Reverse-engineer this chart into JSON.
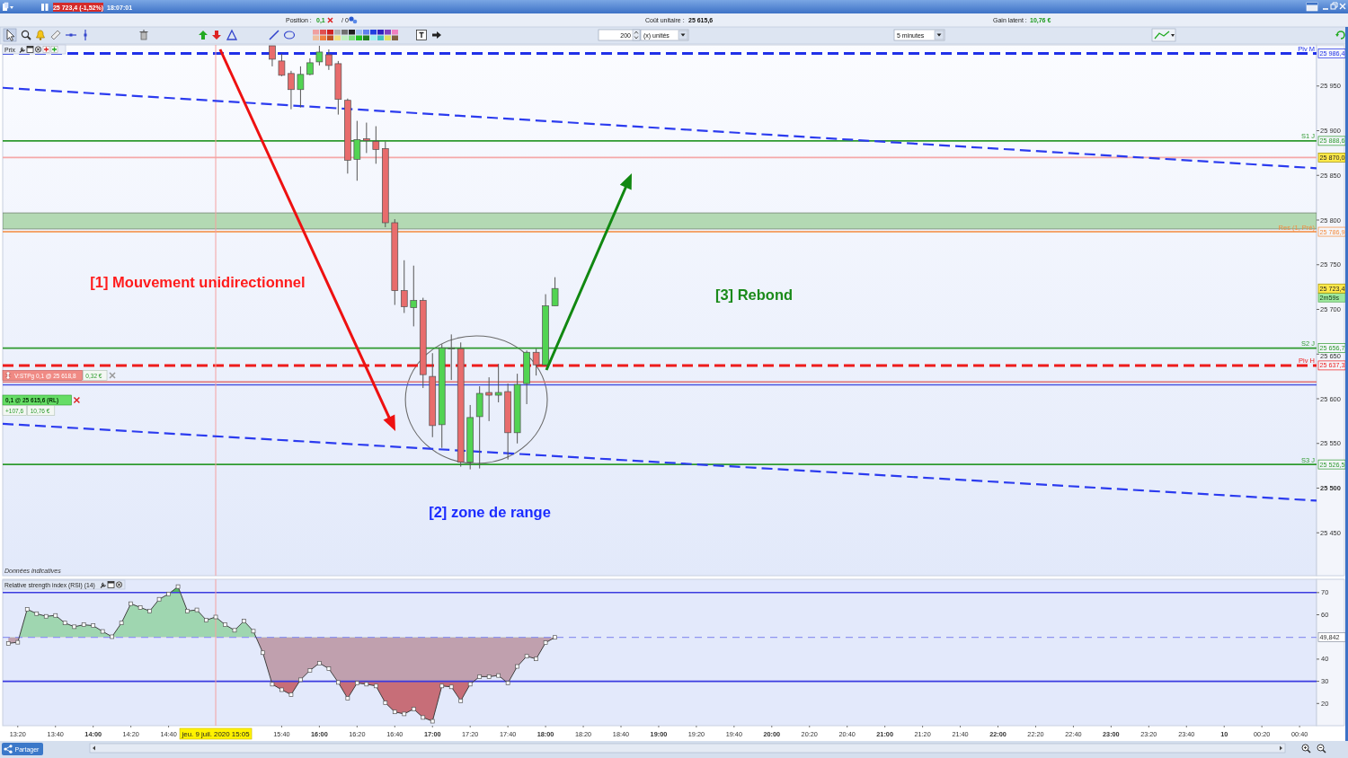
{
  "chart_data": [
    {
      "type": "candlestick",
      "ylabel": "Prix",
      "tick_labels": "y",
      "x": [
        "2020-07-09T15:35",
        "2020-07-09T15:40",
        "2020-07-09T15:45",
        "2020-07-09T15:50",
        "2020-07-09T15:55",
        "2020-07-09T16:00",
        "2020-07-09T16:05",
        "2020-07-09T16:10",
        "2020-07-09T16:15",
        "2020-07-09T16:20",
        "2020-07-09T16:25",
        "2020-07-09T16:30",
        "2020-07-09T16:35",
        "2020-07-09T16:40",
        "2020-07-09T16:45",
        "2020-07-09T16:50",
        "2020-07-09T16:55",
        "2020-07-09T17:00",
        "2020-07-09T17:05",
        "2020-07-09T17:10",
        "2020-07-09T17:15",
        "2020-07-09T17:20",
        "2020-07-09T17:25",
        "2020-07-09T17:30",
        "2020-07-09T17:35",
        "2020-07-09T17:40",
        "2020-07-09T17:45",
        "2020-07-09T17:50",
        "2020-07-09T17:55",
        "2020-07-09T18:00",
        "2020-07-09T18:05"
      ],
      "ohlc": [
        [
          25995,
          25995,
          25972,
          25980
        ],
        [
          25978,
          25986,
          25961,
          25962
        ],
        [
          25964,
          25967,
          25924,
          25946
        ],
        [
          25946,
          25972,
          25926,
          25963
        ],
        [
          25963,
          25981,
          25962,
          25976
        ],
        [
          25977,
          25995,
          25973,
          25988
        ],
        [
          25985,
          25991,
          25968,
          25973
        ],
        [
          25975,
          25978,
          25918,
          25935
        ],
        [
          25934,
          25936,
          25852,
          25867
        ],
        [
          25868,
          25911,
          25844,
          25890
        ],
        [
          25891,
          25909,
          25875,
          25889
        ],
        [
          25888,
          25905,
          25863,
          25879
        ],
        [
          25880,
          25888,
          25792,
          25797
        ],
        [
          25797,
          25801,
          25705,
          25721
        ],
        [
          25721,
          25755,
          25696,
          25703
        ],
        [
          25702,
          25749,
          25681,
          25710
        ],
        [
          25710,
          25713,
          25612,
          25627
        ],
        [
          25625,
          25651,
          25557,
          25570
        ],
        [
          25571,
          25661,
          25545,
          25657
        ],
        [
          25656,
          25672,
          25621,
          25657
        ],
        [
          25656,
          25663,
          25524,
          25529
        ],
        [
          25529,
          25593,
          25521,
          25579
        ],
        [
          25580,
          25614,
          25522,
          25606
        ],
        [
          25607,
          25624,
          25575,
          25604
        ],
        [
          25604,
          25639,
          25596,
          25607
        ],
        [
          25608,
          25617,
          25532,
          25562
        ],
        [
          25562,
          25628,
          25550,
          25616
        ],
        [
          25617,
          25654,
          25594,
          25652
        ],
        [
          25652,
          25656,
          25626,
          25638
        ],
        [
          25638,
          25717,
          25637,
          25704
        ],
        [
          25704,
          25736,
          25704,
          25723.4
        ]
      ],
      "series": [
        {
          "type": "line",
          "color": "#2b3bef",
          "line_style": "dashed",
          "x": [
            "2020-07-09T13:12",
            "2020-07-10T00:49"
          ],
          "values": [
            25948,
            25858
          ]
        },
        {
          "type": "line",
          "color": "#2b3bef",
          "line_style": "dashed",
          "x": [
            "2020-07-09T13:12",
            "2020-07-10T00:49"
          ],
          "values": [
            25572,
            25486
          ]
        }
      ],
      "xlim": [
        "2020-07-09T13:12",
        "2020-07-10T00:49"
      ],
      "ylim": [
        25402,
        25996
      ],
      "yticks": [
        {
          "value": 25450,
          "label": "25 450"
        },
        {
          "value": 25500,
          "label": "25 500"
        },
        {
          "value": 25550,
          "label": "25 550"
        },
        {
          "value": 25600,
          "label": "25 600"
        },
        {
          "value": 25650,
          "label": "25 650"
        },
        {
          "value": 25700,
          "label": "25 700"
        },
        {
          "value": 25750,
          "label": "25 750"
        },
        {
          "value": 25800,
          "label": "25 800"
        },
        {
          "value": 25850,
          "label": "25 850"
        },
        {
          "value": 25900,
          "label": "25 900"
        },
        {
          "value": 25950,
          "label": "25 950"
        }
      ],
      "bands": [
        {
          "axis": "y",
          "from": 25790,
          "to": 25808,
          "color": "#b3d9b3"
        }
      ],
      "ref_lines": [
        {
          "axis": "y",
          "value": 25986.4,
          "label": "Piv M",
          "color": "#2030e8",
          "line_style": "dashed"
        },
        {
          "axis": "y",
          "value": 25888.6,
          "label": "S1 J",
          "color": "#2e9a2e"
        },
        {
          "axis": "y",
          "value": 25870.0,
          "color": "#f5a8a8"
        },
        {
          "axis": "y",
          "value": 25786.9,
          "label": "Res (1, Pré)",
          "color": "#f58a3c"
        },
        {
          "axis": "y",
          "value": 25656.7,
          "label": "S2 J",
          "color": "#2e9a2e"
        },
        {
          "axis": "y",
          "value": 25637.3,
          "label": "Piv H",
          "color": "#ee1c1c",
          "line_style": "dashed"
        },
        {
          "axis": "y",
          "value": 25618.8,
          "color": "#e07070"
        },
        {
          "axis": "y",
          "value": 25615.6,
          "color": "#4a55e0"
        },
        {
          "axis": "y",
          "value": 25526.5,
          "label": "S3 J",
          "color": "#2e9a2e"
        },
        {
          "axis": "x",
          "value": "2020-07-09T15:05",
          "color": "#f5a0a0"
        }
      ],
      "annotations": [
        "[1] Mouvement unidirectionnel",
        "[2] zone de range",
        "[3] Rebond",
        "V:STPg 0,1 @ 25 618,8",
        "0,32 €",
        "0,1 @ 25 615,6 (RL)",
        "+107,6",
        "10,76 €",
        "Données indicatives",
        "2m59s",
        {
          "text": "25 986,4",
          "y": 25986.4
        },
        {
          "text": "25 888,6",
          "y": 25888.6
        },
        {
          "text": "25 870,0",
          "y": 25870.0
        },
        {
          "text": "25 786,9",
          "y": 25786.9
        },
        {
          "text": "25 723,4",
          "y": 25723.4
        },
        {
          "text": "25 656,7",
          "y": 25656.7
        },
        {
          "text": "25 637,3",
          "y": 25637.3
        },
        {
          "text": "25 526,5",
          "y": 25526.5
        }
      ]
    },
    {
      "type": "area",
      "title": "Relative strength index (RSI) (14)",
      "marker": "square",
      "x": [
        "2020-07-09T13:15",
        "2020-07-09T13:20",
        "2020-07-09T13:25",
        "2020-07-09T13:30",
        "2020-07-09T13:35",
        "2020-07-09T13:40",
        "2020-07-09T13:45",
        "2020-07-09T13:50",
        "2020-07-09T13:55",
        "2020-07-09T14:00",
        "2020-07-09T14:05",
        "2020-07-09T14:10",
        "2020-07-09T14:15",
        "2020-07-09T14:20",
        "2020-07-09T14:25",
        "2020-07-09T14:30",
        "2020-07-09T14:35",
        "2020-07-09T14:40",
        "2020-07-09T14:45",
        "2020-07-09T14:50",
        "2020-07-09T14:55",
        "2020-07-09T15:00",
        "2020-07-09T15:05",
        "2020-07-09T15:10",
        "2020-07-09T15:15",
        "2020-07-09T15:20",
        "2020-07-09T15:25",
        "2020-07-09T15:30",
        "2020-07-09T15:35",
        "2020-07-09T15:40",
        "2020-07-09T15:45",
        "2020-07-09T15:50",
        "2020-07-09T15:55",
        "2020-07-09T16:00",
        "2020-07-09T16:05",
        "2020-07-09T16:10",
        "2020-07-09T16:15",
        "2020-07-09T16:20",
        "2020-07-09T16:25",
        "2020-07-09T16:30",
        "2020-07-09T16:35",
        "2020-07-09T16:40",
        "2020-07-09T16:45",
        "2020-07-09T16:50",
        "2020-07-09T16:55",
        "2020-07-09T17:00",
        "2020-07-09T17:05",
        "2020-07-09T17:10",
        "2020-07-09T17:15",
        "2020-07-09T17:20",
        "2020-07-09T17:25",
        "2020-07-09T17:30",
        "2020-07-09T17:35",
        "2020-07-09T17:40",
        "2020-07-09T17:45",
        "2020-07-09T17:50",
        "2020-07-09T17:55",
        "2020-07-09T18:00",
        "2020-07-09T18:05"
      ],
      "series": [
        {
          "color": "#404040",
          "values": [
            47.1,
            47.6,
            62.5,
            60.5,
            59.3,
            59.7,
            56.3,
            54.6,
            55.5,
            55.1,
            52.5,
            50.1,
            56.3,
            65.0,
            63.3,
            61.7,
            67.0,
            69.4,
            72.7,
            61.7,
            62.2,
            57.6,
            59.0,
            55.5,
            53.0,
            57.2,
            52.6,
            42.9,
            28.7,
            26.2,
            24.0,
            30.7,
            34.9,
            38.2,
            35.7,
            29.5,
            22.3,
            29.2,
            28.7,
            27.9,
            20.3,
            16.2,
            15.3,
            17.5,
            13.7,
            12.0,
            27.9,
            27.5,
            21.2,
            28.7,
            32.1,
            32.1,
            32.6,
            29.2,
            36.7,
            41.3,
            40.1,
            47.4,
            49.8
          ]
        }
      ],
      "xlim": [
        "2020-07-09T13:12",
        "2020-07-10T00:49"
      ],
      "ylim": [
        10,
        76
      ],
      "yticks": [
        20,
        30,
        40,
        60,
        70
      ],
      "xticks": [
        {
          "value": "2020-07-09T13:20",
          "label": "13:20"
        },
        {
          "value": "2020-07-09T13:40",
          "label": "13:40"
        },
        {
          "value": "2020-07-09T14:00",
          "label": "14:00"
        },
        {
          "value": "2020-07-09T14:20",
          "label": "14:20"
        },
        {
          "value": "2020-07-09T14:40",
          "label": "14:40"
        },
        {
          "value": "2020-07-09T15:40",
          "label": "15:40"
        },
        {
          "value": "2020-07-09T16:00",
          "label": "16:00"
        },
        {
          "value": "2020-07-09T16:20",
          "label": "16:20"
        },
        {
          "value": "2020-07-09T16:40",
          "label": "16:40"
        },
        {
          "value": "2020-07-09T17:00",
          "label": "17:00"
        },
        {
          "value": "2020-07-09T17:20",
          "label": "17:20"
        },
        {
          "value": "2020-07-09T17:40",
          "label": "17:40"
        },
        {
          "value": "2020-07-09T18:00",
          "label": "18:00"
        },
        {
          "value": "2020-07-09T18:20",
          "label": "18:20"
        },
        {
          "value": "2020-07-09T18:40",
          "label": "18:40"
        },
        {
          "value": "2020-07-09T19:00",
          "label": "19:00"
        },
        {
          "value": "2020-07-09T19:20",
          "label": "19:20"
        },
        {
          "value": "2020-07-09T19:40",
          "label": "19:40"
        },
        {
          "value": "2020-07-09T20:00",
          "label": "20:00"
        },
        {
          "value": "2020-07-09T20:20",
          "label": "20:20"
        },
        {
          "value": "2020-07-09T20:40",
          "label": "20:40"
        },
        {
          "value": "2020-07-09T21:00",
          "label": "21:00"
        },
        {
          "value": "2020-07-09T21:20",
          "label": "21:20"
        },
        {
          "value": "2020-07-09T21:40",
          "label": "21:40"
        },
        {
          "value": "2020-07-09T22:00",
          "label": "22:00"
        },
        {
          "value": "2020-07-09T22:20",
          "label": "22:20"
        },
        {
          "value": "2020-07-09T22:40",
          "label": "22:40"
        },
        {
          "value": "2020-07-09T23:00",
          "label": "23:00"
        },
        {
          "value": "2020-07-09T23:20",
          "label": "23:20"
        },
        {
          "value": "2020-07-09T23:40",
          "label": "23:40"
        },
        {
          "value": "2020-07-10T00:00",
          "label": "10"
        },
        {
          "value": "2020-07-10T00:20",
          "label": "00:20"
        },
        {
          "value": "2020-07-10T00:40",
          "label": "00:40"
        }
      ],
      "ref_lines": [
        {
          "axis": "y",
          "value": 70,
          "color": "#3b3be0"
        },
        {
          "axis": "y",
          "value": 30,
          "color": "#3b3be0"
        },
        {
          "axis": "y",
          "value": 49.842,
          "label": "49,842",
          "color": "#8f95f0",
          "line_style": "dashed"
        },
        {
          "axis": "x",
          "value": "2020-07-09T15:05",
          "label": "jeu. 9 juil. 2020 15:05",
          "color": "#f5a0a0"
        }
      ]
    },
    {
      "type": "other",
      "annotations": [
        "25 723,4 (-1,52%)",
        "18:07:01",
        "Position :",
        "0,1",
        "/ 0",
        "Coût unitaire :",
        "25 615,6",
        "Gain latent :",
        "10,76 €",
        "200",
        "(x) unités",
        "5 minutes",
        "Partager"
      ]
    }
  ]
}
